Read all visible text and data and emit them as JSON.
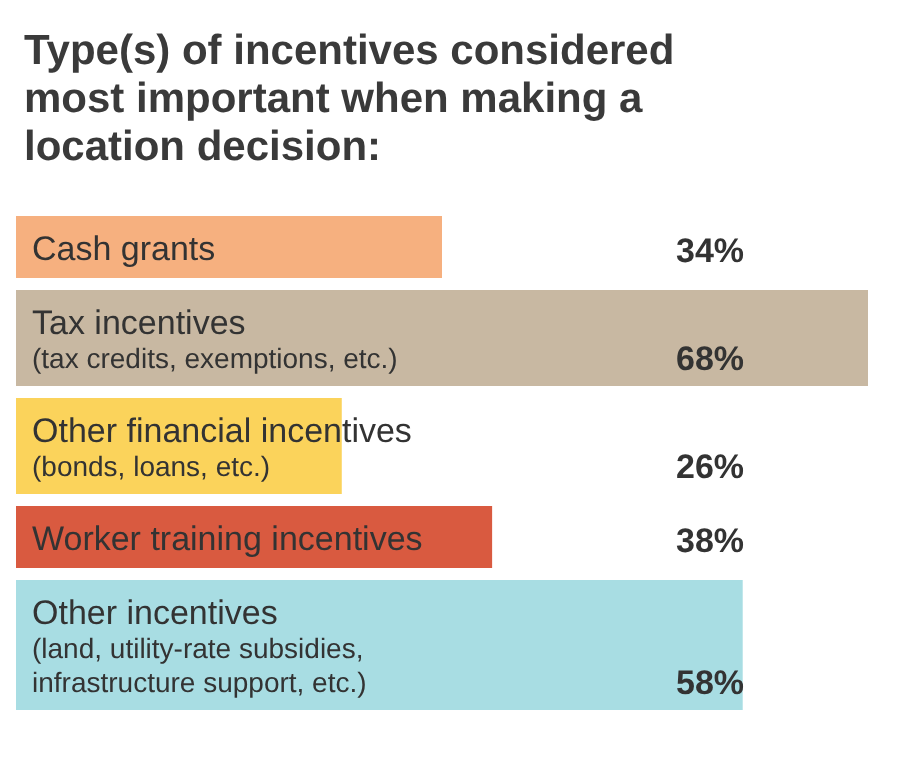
{
  "chart_data": {
    "type": "bar",
    "orientation": "horizontal",
    "title": "Type(s) of incentives considered most important when making a location decision:",
    "categories": [
      "Cash grants",
      "Tax incentives\n(tax credits, exemptions, etc.)",
      "Other financial incentives\n(bonds, loans, etc.)",
      "Worker training incentives",
      "Other incentives\n(land, utility-rate subsidies,\ninfrastructure support, etc.)"
    ],
    "values": [
      34,
      68,
      26,
      38,
      58
    ],
    "colors": [
      "#f6b07f",
      "#c8b8a2",
      "#fbd35b",
      "#d95a40",
      "#a8dde3"
    ],
    "value_labels": [
      "34%",
      "68%",
      "26%",
      "38%",
      "58%"
    ]
  }
}
